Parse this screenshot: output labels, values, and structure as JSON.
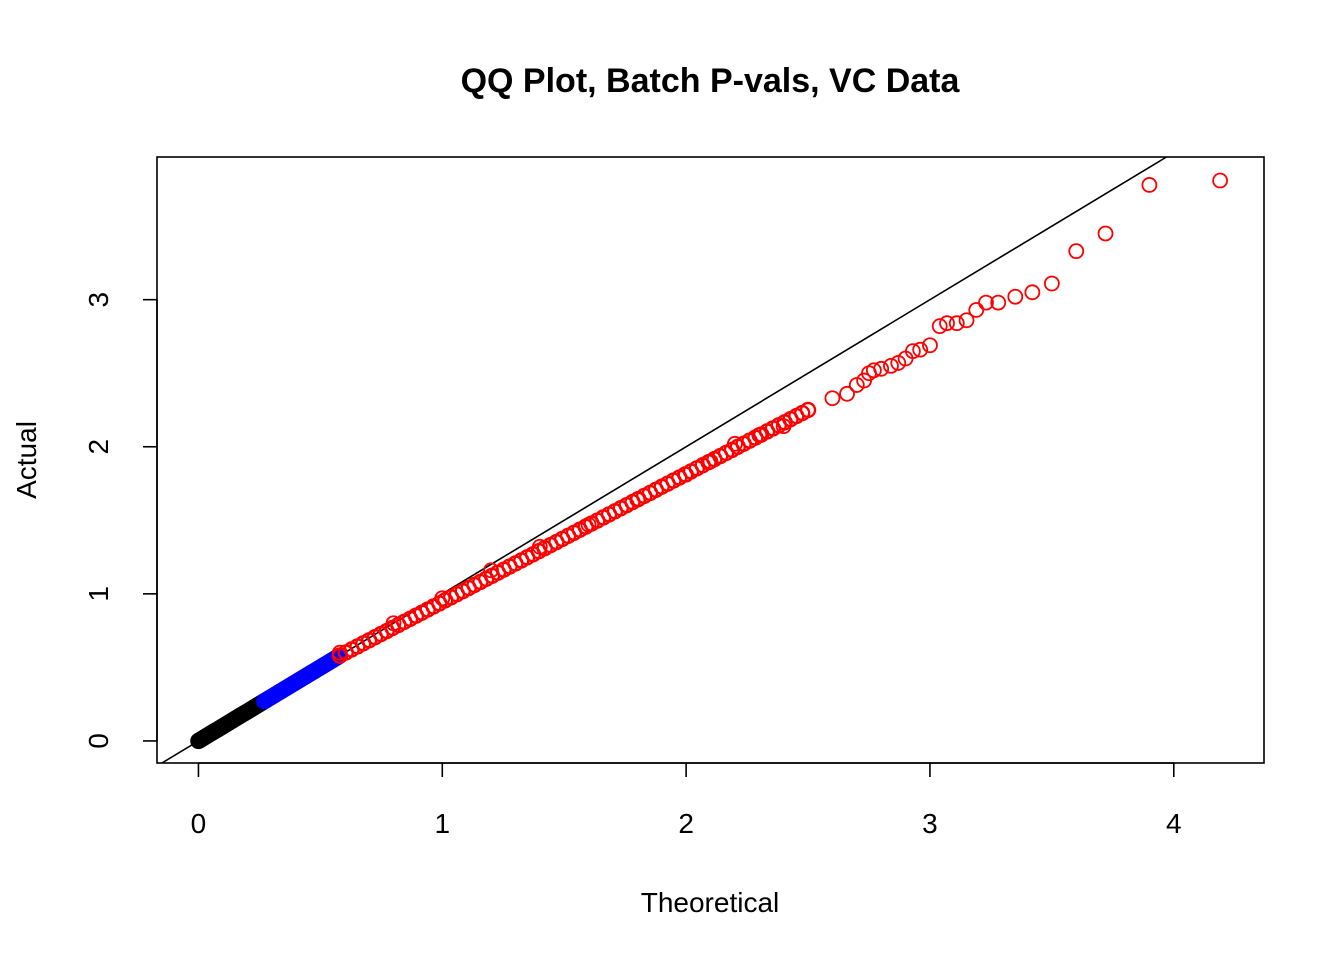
{
  "chart_data": {
    "type": "scatter",
    "title": "QQ Plot, Batch P-vals, VC Data",
    "xlabel": "Theoretical",
    "ylabel": "Actual",
    "xlim": [
      -0.17,
      4.37
    ],
    "ylim": [
      -0.15,
      3.97
    ],
    "x_ticks": [
      0,
      1,
      2,
      3,
      4
    ],
    "y_ticks": [
      0,
      1,
      2,
      3
    ],
    "x_tick_labels": [
      "0",
      "1",
      "2",
      "3",
      "4"
    ],
    "y_tick_labels": [
      "0",
      "1",
      "2",
      "3"
    ],
    "grid": false,
    "reference_line": {
      "type": "y=x",
      "color": "#000000"
    },
    "series": [
      {
        "color": "#000000",
        "dense_range": {
          "x": [
            0.0,
            0.27
          ],
          "y": [
            0.0,
            0.27
          ]
        },
        "points": [
          [
            0.0,
            0.0
          ],
          [
            0.05,
            0.05
          ],
          [
            0.1,
            0.1
          ],
          [
            0.15,
            0.15
          ],
          [
            0.2,
            0.2
          ],
          [
            0.27,
            0.27
          ]
        ]
      },
      {
        "color": "#0000ff",
        "dense_range": {
          "x": [
            0.27,
            0.58
          ],
          "y": [
            0.27,
            0.58
          ]
        },
        "points": [
          [
            0.27,
            0.27
          ],
          [
            0.35,
            0.35
          ],
          [
            0.42,
            0.42
          ],
          [
            0.5,
            0.5
          ],
          [
            0.58,
            0.58
          ]
        ]
      },
      {
        "color": "#ff0000",
        "dense_range": {
          "x": [
            0.58,
            2.5
          ],
          "y": [
            0.58,
            2.25
          ]
        },
        "points": [
          [
            0.58,
            0.6
          ],
          [
            0.8,
            0.8
          ],
          [
            1.0,
            0.97
          ],
          [
            1.2,
            1.16
          ],
          [
            1.4,
            1.32
          ],
          [
            1.6,
            1.47
          ],
          [
            1.8,
            1.64
          ],
          [
            2.0,
            1.81
          ],
          [
            2.1,
            1.9
          ],
          [
            2.2,
            2.02
          ],
          [
            2.3,
            2.08
          ],
          [
            2.4,
            2.14
          ],
          [
            2.5,
            2.25
          ],
          [
            2.6,
            2.33
          ],
          [
            2.66,
            2.36
          ],
          [
            2.7,
            2.42
          ],
          [
            2.73,
            2.45
          ],
          [
            2.75,
            2.5
          ],
          [
            2.77,
            2.52
          ],
          [
            2.8,
            2.53
          ],
          [
            2.84,
            2.55
          ],
          [
            2.87,
            2.57
          ],
          [
            2.9,
            2.6
          ],
          [
            2.93,
            2.65
          ],
          [
            2.96,
            2.66
          ],
          [
            3.0,
            2.69
          ],
          [
            3.04,
            2.82
          ],
          [
            3.07,
            2.84
          ],
          [
            3.11,
            2.84
          ],
          [
            3.15,
            2.86
          ],
          [
            3.19,
            2.93
          ],
          [
            3.23,
            2.98
          ],
          [
            3.28,
            2.98
          ],
          [
            3.35,
            3.02
          ],
          [
            3.42,
            3.05
          ],
          [
            3.5,
            3.11
          ],
          [
            3.6,
            3.33
          ],
          [
            3.72,
            3.45
          ],
          [
            3.9,
            3.78
          ],
          [
            4.19,
            3.81
          ]
        ]
      }
    ]
  }
}
